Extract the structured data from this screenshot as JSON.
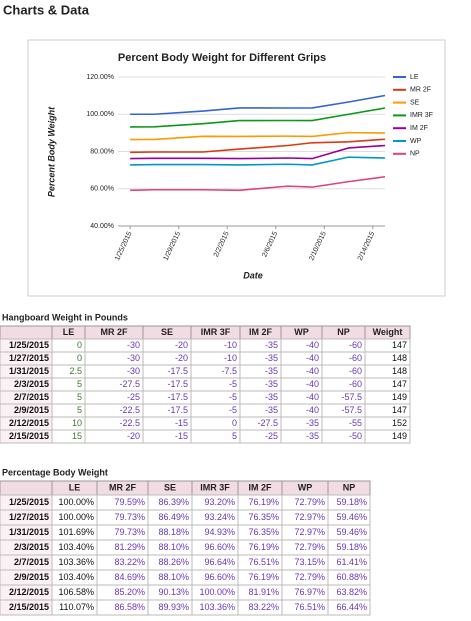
{
  "header": {
    "title": "Charts & Data"
  },
  "chart_data": {
    "type": "line",
    "title": "Percent Body Weight for Different Grips",
    "x_label": "Date",
    "y_label": "Percent Body Weight",
    "x": [
      "1/25/2015",
      "1/27/2015",
      "1/31/2015",
      "2/3/2015",
      "2/7/2015",
      "2/9/2015",
      "2/12/2015",
      "2/15/2015"
    ],
    "xlim": [
      "1/24/2015",
      "2/15/2015"
    ],
    "xticks": [
      "1/25/2015",
      "1/29/2015",
      "2/2/2015",
      "2/6/2015",
      "2/10/2015",
      "2/14/2015"
    ],
    "ylim": [
      40,
      120
    ],
    "yticks": [
      {
        "value": 40,
        "label": "40.00%"
      },
      {
        "value": 60,
        "label": "60.00%"
      },
      {
        "value": 80,
        "label": "80.00%"
      },
      {
        "value": 100,
        "label": "100.00%"
      },
      {
        "value": 120,
        "label": "120.00%"
      }
    ],
    "grid": true,
    "legend": "right",
    "series": [
      {
        "name": "LE",
        "color": "#3366cc",
        "values": [
          100.0,
          100.0,
          101.69,
          103.4,
          103.36,
          103.4,
          106.58,
          110.07
        ]
      },
      {
        "name": "MR 2F",
        "color": "#dc3912",
        "values": [
          79.59,
          79.73,
          79.73,
          81.29,
          83.22,
          84.69,
          85.2,
          86.58
        ]
      },
      {
        "name": "SE",
        "color": "#ff9900",
        "values": [
          86.39,
          86.49,
          88.18,
          88.1,
          88.26,
          88.1,
          90.13,
          89.93
        ]
      },
      {
        "name": "IMR 3F",
        "color": "#109618",
        "values": [
          93.2,
          93.24,
          94.93,
          96.6,
          96.64,
          96.6,
          100.0,
          103.36
        ]
      },
      {
        "name": "IM 2F",
        "color": "#990099",
        "values": [
          76.19,
          76.35,
          76.35,
          76.19,
          76.51,
          76.19,
          81.91,
          83.22
        ]
      },
      {
        "name": "WP",
        "color": "#0099c6",
        "values": [
          72.79,
          72.97,
          72.97,
          72.79,
          73.15,
          72.79,
          76.97,
          76.51
        ]
      },
      {
        "name": "NP",
        "color": "#dd4477",
        "values": [
          59.18,
          59.46,
          59.46,
          59.18,
          61.41,
          60.88,
          63.82,
          66.44
        ]
      }
    ]
  },
  "tables": [
    {
      "title": "Hangboard Weight in Pounds",
      "columns": [
        "LE",
        "MR 2F",
        "SE",
        "IMR 3F",
        "IM 2F",
        "WP",
        "NP",
        "Weight"
      ],
      "rows": [
        [
          "1/25/2015",
          0,
          -30,
          -20,
          -10,
          -35,
          -40,
          -60,
          147
        ],
        [
          "1/27/2015",
          0,
          -30,
          -20,
          -10,
          -35,
          -40,
          -60,
          148
        ],
        [
          "1/31/2015",
          2.5,
          -30,
          -17.5,
          -7.5,
          -35,
          -40,
          -60,
          148
        ],
        [
          "2/3/2015",
          5,
          -27.5,
          -17.5,
          -5,
          -35,
          -40,
          -60,
          147
        ],
        [
          "2/7/2015",
          5,
          -25,
          -17.5,
          -5,
          -35,
          -40,
          -57.5,
          149
        ],
        [
          "2/9/2015",
          5,
          -22.5,
          -17.5,
          -5,
          -35,
          -40,
          -57.5,
          147
        ],
        [
          "2/12/2015",
          10,
          -22.5,
          -15,
          0,
          -27.5,
          -35,
          -55,
          152
        ],
        [
          "2/15/2015",
          15,
          -20,
          -15,
          5,
          -25,
          -35,
          -50,
          149
        ]
      ]
    },
    {
      "title": "Percentage Body Weight",
      "columns": [
        "LE",
        "MR 2F",
        "SE",
        "IMR 3F",
        "IM 2F",
        "WP",
        "NP"
      ],
      "rows": [
        [
          "1/25/2015",
          "100.00%",
          "79.59%",
          "86.39%",
          "93.20%",
          "76.19%",
          "72.79%",
          "59.18%"
        ],
        [
          "1/27/2015",
          "100.00%",
          "79.73%",
          "86.49%",
          "93.24%",
          "76.35%",
          "72.97%",
          "59.46%"
        ],
        [
          "1/31/2015",
          "101.69%",
          "79.73%",
          "88.18%",
          "94.93%",
          "76.35%",
          "72.97%",
          "59.46%"
        ],
        [
          "2/3/2015",
          "103.40%",
          "81.29%",
          "88.10%",
          "96.60%",
          "76.19%",
          "72.79%",
          "59.18%"
        ],
        [
          "2/7/2015",
          "103.36%",
          "83.22%",
          "88.26%",
          "96.64%",
          "76.51%",
          "73.15%",
          "61.41%"
        ],
        [
          "2/9/2015",
          "103.40%",
          "84.69%",
          "88.10%",
          "96.60%",
          "76.19%",
          "72.79%",
          "60.88%"
        ],
        [
          "2/12/2015",
          "106.58%",
          "85.20%",
          "90.13%",
          "100.00%",
          "81.91%",
          "76.97%",
          "63.82%"
        ],
        [
          "2/15/2015",
          "110.07%",
          "86.58%",
          "89.93%",
          "103.36%",
          "83.22%",
          "76.51%",
          "66.44%"
        ]
      ]
    }
  ]
}
